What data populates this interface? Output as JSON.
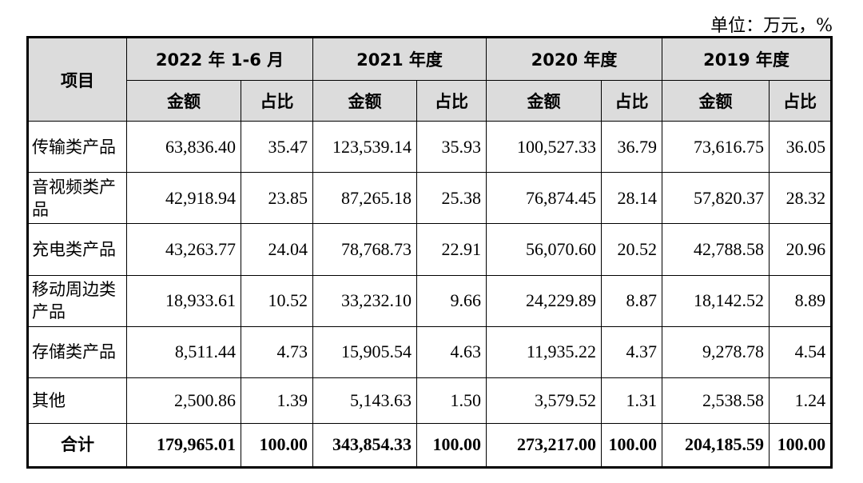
{
  "unit_note": "单位：万元，%",
  "header": {
    "item_label": "项目",
    "periods": [
      "2022 年 1-6 月",
      "2021 年度",
      "2020 年度",
      "2019 年度"
    ],
    "amount_label": "金额",
    "ratio_label": "占比"
  },
  "rows": [
    {
      "category": "传输类产品",
      "values": [
        "63,836.40",
        "35.47",
        "123,539.14",
        "35.93",
        "100,527.33",
        "36.79",
        "73,616.75",
        "36.05"
      ]
    },
    {
      "category": "音视频类产品",
      "values": [
        "42,918.94",
        "23.85",
        "87,265.18",
        "25.38",
        "76,874.45",
        "28.14",
        "57,820.37",
        "28.32"
      ]
    },
    {
      "category": "充电类产品",
      "values": [
        "43,263.77",
        "24.04",
        "78,768.73",
        "22.91",
        "56,070.60",
        "20.52",
        "42,788.58",
        "20.96"
      ]
    },
    {
      "category": "移动周边类产品",
      "values": [
        "18,933.61",
        "10.52",
        "33,232.10",
        "9.66",
        "24,229.89",
        "8.87",
        "18,142.52",
        "8.89"
      ]
    },
    {
      "category": "存储类产品",
      "values": [
        "8,511.44",
        "4.73",
        "15,905.54",
        "4.63",
        "11,935.22",
        "4.37",
        "9,278.78",
        "4.54"
      ]
    },
    {
      "category": "其他",
      "values": [
        "2,500.86",
        "1.39",
        "5,143.63",
        "1.50",
        "3,579.52",
        "1.31",
        "2,538.58",
        "1.24"
      ]
    }
  ],
  "total": {
    "category": "合计",
    "values": [
      "179,965.01",
      "100.00",
      "343,854.33",
      "100.00",
      "273,217.00",
      "100.00",
      "204,185.59",
      "100.00"
    ]
  }
}
